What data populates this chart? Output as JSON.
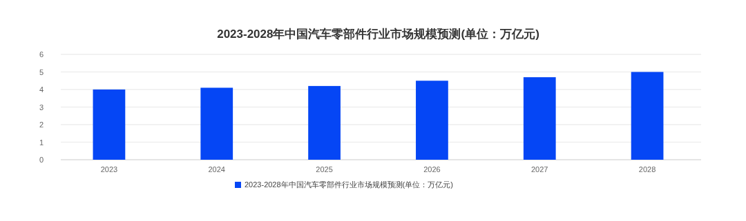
{
  "chart_data": {
    "type": "bar",
    "title": "2023-2028年中国汽车零部件行业市场规模预测(单位：万亿元)",
    "categories": [
      "2023",
      "2024",
      "2025",
      "2026",
      "2027",
      "2028"
    ],
    "series": [
      {
        "name": "2023-2028年中国汽车零部件行业市场规模预测(单位：万亿元)",
        "color": "#0546f5",
        "values": [
          4.0,
          4.1,
          4.2,
          4.5,
          4.7,
          5.0
        ]
      }
    ],
    "ylim": [
      0,
      6
    ],
    "yticks": [
      0,
      1,
      2,
      3,
      4,
      5,
      6
    ],
    "grid": "y",
    "legend": "bottom"
  }
}
